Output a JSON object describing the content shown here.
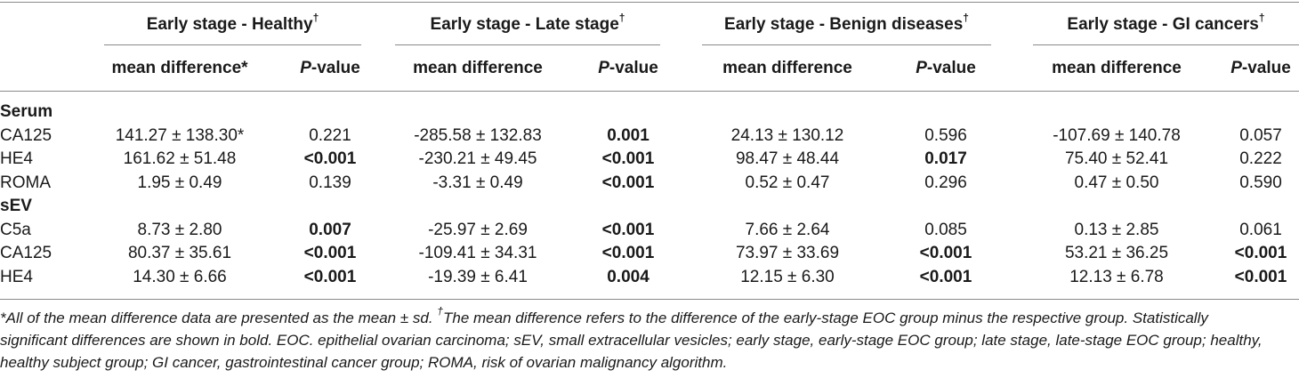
{
  "groups": [
    {
      "label": "Early stage - Healthy",
      "mark": "†"
    },
    {
      "label": "Early stage - Late stage",
      "mark": "†"
    },
    {
      "label": "Early stage - Benign diseases",
      "mark": "†"
    },
    {
      "label": "Early stage - GI cancers",
      "mark": "†"
    }
  ],
  "subheaders": {
    "mean_difference": [
      "mean difference*",
      "mean difference",
      "mean difference",
      "mean difference"
    ],
    "p_italic": "P",
    "p_rest": "-value"
  },
  "sections": [
    {
      "title": "Serum",
      "rows": [
        {
          "name": "CA125",
          "cells": [
            {
              "mean": "141.27 ± 138.30*",
              "p": "0.221",
              "bold": false
            },
            {
              "mean": "-285.58 ± 132.83",
              "p": "0.001",
              "bold": true
            },
            {
              "mean": "24.13 ± 130.12",
              "p": "0.596",
              "bold": false
            },
            {
              "mean": "-107.69 ± 140.78",
              "p": "0.057",
              "bold": false
            }
          ]
        },
        {
          "name": "HE4",
          "cells": [
            {
              "mean": "161.62 ± 51.48",
              "p": "<0.001",
              "bold": true
            },
            {
              "mean": "-230.21 ± 49.45",
              "p": "<0.001",
              "bold": true
            },
            {
              "mean": "98.47 ± 48.44",
              "p": "0.017",
              "bold": true
            },
            {
              "mean": "75.40 ± 52.41",
              "p": "0.222",
              "bold": false
            }
          ]
        },
        {
          "name": "ROMA",
          "cells": [
            {
              "mean": "1.95 ± 0.49",
              "p": "0.139",
              "bold": false
            },
            {
              "mean": "-3.31 ± 0.49",
              "p": "<0.001",
              "bold": true
            },
            {
              "mean": "0.52 ± 0.47",
              "p": "0.296",
              "bold": false
            },
            {
              "mean": "0.47 ± 0.50",
              "p": "0.590",
              "bold": false
            }
          ]
        }
      ]
    },
    {
      "title": "sEV",
      "rows": [
        {
          "name": "C5a",
          "cells": [
            {
              "mean": "8.73 ± 2.80",
              "p": "0.007",
              "bold": true
            },
            {
              "mean": "-25.97 ± 2.69",
              "p": "<0.001",
              "bold": true
            },
            {
              "mean": "7.66 ± 2.64",
              "p": "0.085",
              "bold": false
            },
            {
              "mean": "0.13 ± 2.85",
              "p": "0.061",
              "bold": false
            }
          ]
        },
        {
          "name": "CA125",
          "cells": [
            {
              "mean": "80.37 ± 35.61",
              "p": "<0.001",
              "bold": true
            },
            {
              "mean": "-109.41 ± 34.31",
              "p": "<0.001",
              "bold": true
            },
            {
              "mean": "73.97 ± 33.69",
              "p": "<0.001",
              "bold": true
            },
            {
              "mean": "53.21 ± 36.25",
              "p": "<0.001",
              "bold": true
            }
          ]
        },
        {
          "name": "HE4",
          "cells": [
            {
              "mean": "14.30 ± 6.66",
              "p": "<0.001",
              "bold": true
            },
            {
              "mean": "-19.39 ± 6.41",
              "p": "0.004",
              "bold": true
            },
            {
              "mean": "12.15 ± 6.30",
              "p": "<0.001",
              "bold": true
            },
            {
              "mean": "12.13 ± 6.78",
              "p": "<0.001",
              "bold": true
            }
          ]
        }
      ]
    }
  ],
  "footnote": {
    "line1_a": "*All of the mean difference data are presented as the mean ± sd. ",
    "mark": "†",
    "line1_b": "The mean difference refers to the difference of the early-stage EOC group minus the respective group. Statistically",
    "line2": "significant differences are shown in bold. EOC. epithelial ovarian carcinoma; sEV, small extracellular vesicles; early stage, early-stage EOC group; late stage, late-stage EOC group; healthy,",
    "line3": "healthy subject group; GI cancer, gastrointestinal cancer group; ROMA, risk of ovarian malignancy algorithm."
  }
}
